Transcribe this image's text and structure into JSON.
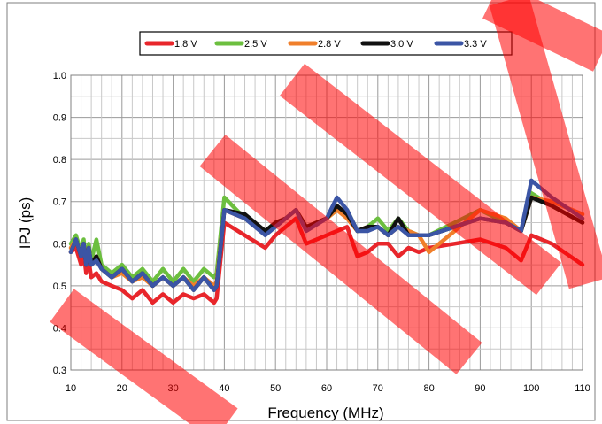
{
  "chart_data": {
    "type": "line",
    "title": "",
    "xlabel": "Frequency (MHz)",
    "ylabel": "IPJ (ps)",
    "xlim": [
      10,
      110
    ],
    "ylim": [
      0.3,
      1.0
    ],
    "x_ticks": [
      "10",
      "20",
      "30",
      "40",
      "50",
      "60",
      "70",
      "80",
      "90",
      "100",
      "110"
    ],
    "y_ticks": [
      "0.3",
      "0.4",
      "0.5",
      "0.6",
      "0.7",
      "0.8",
      "0.9",
      "1.0"
    ],
    "grid": true,
    "legend_position": "top",
    "series": [
      {
        "name": "1.8 V",
        "color": "#e8262b",
        "x": [
          10,
          11,
          12,
          12.5,
          13,
          13.5,
          14,
          15,
          16,
          18,
          20,
          22,
          24,
          26,
          28,
          30,
          32,
          34,
          36,
          38,
          38.5,
          40,
          44,
          48,
          50,
          52,
          54,
          56,
          60,
          62,
          64,
          66,
          68,
          70,
          72,
          74,
          76,
          78,
          80,
          85,
          90,
          95,
          98,
          100,
          104,
          110
        ],
        "y": [
          0.58,
          0.59,
          0.55,
          0.58,
          0.53,
          0.56,
          0.52,
          0.53,
          0.51,
          0.5,
          0.49,
          0.47,
          0.49,
          0.46,
          0.48,
          0.46,
          0.48,
          0.47,
          0.48,
          0.46,
          0.47,
          0.65,
          0.62,
          0.59,
          0.62,
          0.64,
          0.66,
          0.6,
          0.62,
          0.63,
          0.64,
          0.57,
          0.58,
          0.6,
          0.6,
          0.57,
          0.59,
          0.58,
          0.59,
          0.6,
          0.61,
          0.59,
          0.56,
          0.62,
          0.6,
          0.55
        ]
      },
      {
        "name": "2.5 V",
        "color": "#6cbf3f",
        "x": [
          10,
          11,
          12,
          12.5,
          13,
          13.5,
          14,
          15,
          16,
          18,
          20,
          22,
          24,
          26,
          28,
          30,
          32,
          34,
          36,
          38,
          38.5,
          40,
          44,
          48,
          50,
          52,
          54,
          56,
          60,
          62,
          64,
          66,
          68,
          70,
          72,
          74,
          76,
          78,
          80,
          85,
          90,
          95,
          98,
          100,
          104,
          110
        ],
        "y": [
          0.6,
          0.62,
          0.58,
          0.61,
          0.56,
          0.6,
          0.56,
          0.61,
          0.55,
          0.53,
          0.55,
          0.52,
          0.54,
          0.51,
          0.54,
          0.51,
          0.54,
          0.51,
          0.54,
          0.52,
          0.53,
          0.71,
          0.66,
          0.63,
          0.65,
          0.66,
          0.68,
          0.64,
          0.66,
          0.68,
          0.68,
          0.63,
          0.64,
          0.66,
          0.63,
          0.66,
          0.63,
          0.62,
          0.62,
          0.65,
          0.68,
          0.65,
          0.63,
          0.72,
          0.69,
          0.65
        ]
      },
      {
        "name": "2.8 V",
        "color": "#f07f2b",
        "x": [
          10,
          11,
          12,
          12.5,
          13,
          13.5,
          14,
          15,
          16,
          18,
          20,
          22,
          24,
          26,
          28,
          30,
          32,
          34,
          36,
          38,
          38.5,
          40,
          44,
          48,
          50,
          52,
          54,
          56,
          60,
          62,
          64,
          66,
          68,
          70,
          72,
          74,
          76,
          78,
          80,
          85,
          90,
          95,
          98,
          100,
          104,
          110
        ],
        "y": [
          0.59,
          0.61,
          0.57,
          0.6,
          0.55,
          0.59,
          0.55,
          0.57,
          0.54,
          0.52,
          0.53,
          0.51,
          0.52,
          0.5,
          0.52,
          0.5,
          0.52,
          0.5,
          0.52,
          0.5,
          0.51,
          0.68,
          0.66,
          0.63,
          0.64,
          0.66,
          0.68,
          0.64,
          0.66,
          0.68,
          0.66,
          0.63,
          0.64,
          0.64,
          0.62,
          0.64,
          0.63,
          0.62,
          0.58,
          0.63,
          0.68,
          0.66,
          0.63,
          0.71,
          0.7,
          0.67
        ]
      },
      {
        "name": "3.0 V",
        "color": "#111111",
        "x": [
          10,
          11,
          12,
          12.5,
          13,
          13.5,
          14,
          15,
          16,
          18,
          20,
          22,
          24,
          26,
          28,
          30,
          32,
          34,
          36,
          38,
          38.5,
          40,
          44,
          48,
          50,
          52,
          54,
          56,
          60,
          62,
          64,
          66,
          68,
          70,
          72,
          74,
          76,
          78,
          80,
          85,
          90,
          95,
          98,
          100,
          104,
          110
        ],
        "y": [
          0.58,
          0.61,
          0.57,
          0.6,
          0.55,
          0.59,
          0.55,
          0.57,
          0.54,
          0.52,
          0.54,
          0.51,
          0.53,
          0.5,
          0.52,
          0.5,
          0.52,
          0.49,
          0.52,
          0.49,
          0.5,
          0.68,
          0.67,
          0.63,
          0.65,
          0.66,
          0.68,
          0.64,
          0.66,
          0.69,
          0.67,
          0.63,
          0.64,
          0.64,
          0.62,
          0.66,
          0.62,
          0.62,
          0.62,
          0.64,
          0.66,
          0.65,
          0.63,
          0.71,
          0.69,
          0.65
        ]
      },
      {
        "name": "3.3 V",
        "color": "#3b55a5",
        "x": [
          10,
          11,
          12,
          12.5,
          13,
          13.5,
          14,
          15,
          16,
          18,
          20,
          22,
          24,
          26,
          28,
          30,
          32,
          34,
          36,
          38,
          38.5,
          40,
          44,
          48,
          50,
          52,
          54,
          56,
          60,
          62,
          64,
          66,
          68,
          70,
          72,
          74,
          76,
          78,
          80,
          85,
          90,
          95,
          98,
          100,
          104,
          110
        ],
        "y": [
          0.58,
          0.61,
          0.57,
          0.6,
          0.55,
          0.59,
          0.55,
          0.56,
          0.54,
          0.52,
          0.54,
          0.51,
          0.53,
          0.5,
          0.52,
          0.5,
          0.52,
          0.49,
          0.52,
          0.49,
          0.5,
          0.68,
          0.66,
          0.62,
          0.64,
          0.66,
          0.68,
          0.63,
          0.66,
          0.71,
          0.68,
          0.63,
          0.63,
          0.64,
          0.62,
          0.64,
          0.62,
          0.62,
          0.62,
          0.64,
          0.66,
          0.65,
          0.63,
          0.75,
          0.71,
          0.66
        ]
      }
    ]
  }
}
